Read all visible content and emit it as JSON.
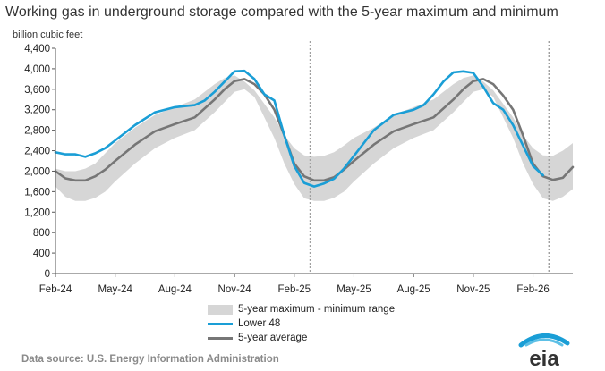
{
  "title": "Working gas in underground  storage compared with the 5-year maximum and minimum",
  "chart_data": {
    "type": "area",
    "ylabel": "billion cubic feet",
    "ylim": [
      0,
      4400
    ],
    "yticks": [
      0,
      400,
      800,
      1200,
      1600,
      2000,
      2400,
      2800,
      3200,
      3600,
      4000,
      4400
    ],
    "ytick_labels": [
      "0",
      "400",
      "800",
      "1,200",
      "1,600",
      "2,000",
      "2,400",
      "2,800",
      "3,200",
      "3,600",
      "4,000",
      "4,400"
    ],
    "xlim": [
      0,
      26
    ],
    "xticks": [
      0,
      3,
      6,
      9,
      12,
      15,
      18,
      21,
      24
    ],
    "xtick_labels": [
      "Feb-24",
      "May-24",
      "Aug-24",
      "Nov-24",
      "Feb-25",
      "May-25",
      "Aug-25",
      "Nov-25",
      "Feb-26"
    ],
    "x_unit": "months since Feb-24",
    "vertical_markers": [
      12.8,
      24.8
    ],
    "series": [
      {
        "name": "5-year maximum",
        "x": [
          0,
          0.5,
          1,
          1.5,
          2,
          2.5,
          3,
          4,
          5,
          6,
          7,
          8,
          8.5,
          9,
          9.5,
          10,
          11,
          11.5,
          12,
          12.5,
          13,
          13.5,
          14,
          14.5,
          15,
          16,
          17,
          18,
          19,
          20,
          20.5,
          21,
          21.5,
          22,
          23,
          23.5,
          24,
          24.5,
          25,
          25.5,
          26
        ],
        "values": [
          2050,
          2000,
          2000,
          2050,
          2150,
          2350,
          2550,
          2850,
          3100,
          3250,
          3400,
          3700,
          3820,
          3870,
          3750,
          3580,
          3050,
          2700,
          2450,
          2310,
          2280,
          2300,
          2370,
          2500,
          2650,
          2850,
          3100,
          3250,
          3400,
          3700,
          3820,
          3870,
          3750,
          3580,
          3050,
          2700,
          2450,
          2310,
          2300,
          2400,
          2550
        ]
      },
      {
        "name": "5-year minimum",
        "x": [
          0,
          0.5,
          1,
          1.5,
          2,
          2.5,
          3,
          4,
          5,
          6,
          7,
          8,
          8.5,
          9,
          9.5,
          10,
          11,
          11.5,
          12,
          12.5,
          13,
          13.5,
          14,
          14.5,
          15,
          16,
          17,
          18,
          19,
          20,
          20.5,
          21,
          21.5,
          22,
          23,
          23.5,
          24,
          24.5,
          25,
          25.5,
          26
        ],
        "values": [
          1700,
          1500,
          1420,
          1420,
          1480,
          1600,
          1800,
          2150,
          2450,
          2650,
          2800,
          3150,
          3350,
          3550,
          3600,
          3450,
          2650,
          2150,
          1750,
          1470,
          1420,
          1420,
          1480,
          1600,
          1800,
          2150,
          2450,
          2650,
          2800,
          3150,
          3350,
          3550,
          3600,
          3450,
          2650,
          2150,
          1750,
          1470,
          1420,
          1500,
          1650
        ]
      },
      {
        "name": "5-year average",
        "x": [
          0,
          0.5,
          1,
          1.5,
          2,
          2.5,
          3,
          4,
          5,
          6,
          7,
          8,
          8.5,
          9,
          9.5,
          10,
          10.5,
          11,
          11.5,
          12,
          12.5,
          13,
          13.5,
          14,
          14.5,
          15,
          16,
          17,
          18,
          19,
          20,
          20.5,
          21,
          21.5,
          22,
          22.5,
          23,
          23.5,
          24,
          24.5,
          25,
          25.5,
          26
        ],
        "values": [
          2000,
          1860,
          1820,
          1820,
          1900,
          2030,
          2200,
          2520,
          2780,
          2920,
          3050,
          3400,
          3600,
          3760,
          3800,
          3700,
          3500,
          3200,
          2700,
          2150,
          1900,
          1820,
          1820,
          1880,
          2030,
          2200,
          2520,
          2780,
          2920,
          3050,
          3400,
          3600,
          3760,
          3800,
          3700,
          3480,
          3200,
          2700,
          2150,
          1900,
          1830,
          1870,
          2080
        ]
      },
      {
        "name": "Lower 48",
        "x": [
          0,
          0.5,
          1,
          1.5,
          2,
          2.5,
          3,
          4,
          5,
          6,
          6.5,
          7,
          7.5,
          8,
          8.5,
          9,
          9.5,
          10,
          10.5,
          11,
          11.5,
          12,
          12.5,
          13,
          13.5,
          14,
          14.5,
          15,
          15.5,
          16,
          16.5,
          17,
          17.5,
          18,
          18.5,
          19,
          19.5,
          20,
          20.5,
          21,
          21.5,
          22,
          22.5,
          23,
          23.5,
          24,
          24.5
        ],
        "values": [
          2370,
          2330,
          2330,
          2280,
          2350,
          2450,
          2600,
          2900,
          3150,
          3250,
          3270,
          3290,
          3380,
          3550,
          3750,
          3950,
          3960,
          3800,
          3500,
          3380,
          2700,
          2100,
          1770,
          1700,
          1760,
          1850,
          2050,
          2300,
          2550,
          2800,
          2950,
          3100,
          3150,
          3200,
          3290,
          3500,
          3750,
          3930,
          3950,
          3920,
          3650,
          3330,
          3200,
          2900,
          2500,
          2100,
          1920
        ]
      }
    ]
  },
  "legend": {
    "range_label": "5-year maximum - minimum range",
    "lower48_label": "Lower 48",
    "avg_label": "5-year average"
  },
  "colors": {
    "range": "#d6d6d6",
    "lower48": "#1a9ed6",
    "average": "#767676",
    "marker": "#a0a0a0",
    "axis": "#555555"
  },
  "source": "Data source:  U.S. Energy Information Administration",
  "logo_text": "eia"
}
